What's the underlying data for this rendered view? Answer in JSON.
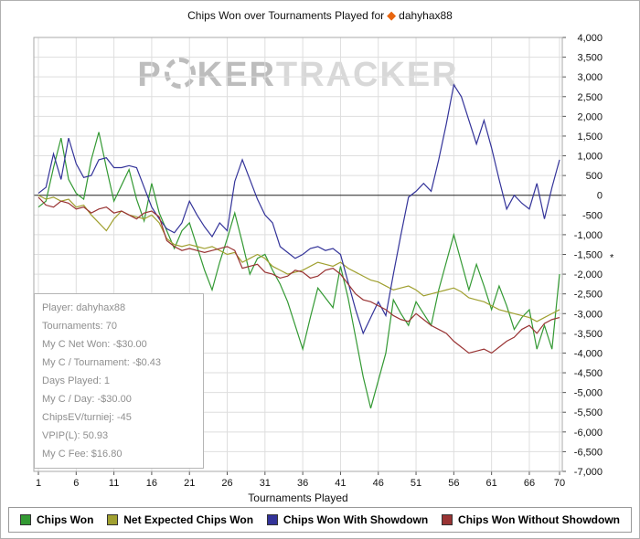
{
  "header": {
    "title_prefix": "Chips Won over Tournaments Played for",
    "player": "dahyhax88",
    "diamond_icon": "diamond-suit"
  },
  "watermark": {
    "part1": "P",
    "part2": "KER",
    "part3": "TRACKER"
  },
  "stats_box": {
    "lines": [
      {
        "label": "Player",
        "value": "dahyhax88"
      },
      {
        "label": "Tournaments",
        "value": "70"
      },
      {
        "label": "My C Net Won",
        "value": "-$30.00"
      },
      {
        "label": "My C / Tournament",
        "value": "-$0.43"
      },
      {
        "label": "Days Played",
        "value": "1"
      },
      {
        "label": "My C / Day",
        "value": "-$30.00"
      },
      {
        "label": "ChipsEV/turniej",
        "value": "-45"
      },
      {
        "label": "VPIP(L)",
        "value": "50.93"
      },
      {
        "label": "My C Fee",
        "value": "$16.80"
      }
    ]
  },
  "chart_data": {
    "type": "line",
    "title": "Chips Won over Tournaments Played for dahyhax88",
    "xlabel": "Tournaments Played",
    "ylabel": "",
    "xlim": [
      1,
      70
    ],
    "ylim": [
      -7000,
      4000
    ],
    "y_tick_step": 500,
    "x_ticks": [
      1,
      6,
      11,
      16,
      21,
      26,
      31,
      36,
      41,
      46,
      51,
      56,
      61,
      66,
      70
    ],
    "grid": true,
    "legend_position": "bottom",
    "y_axis_side": "right",
    "zero_line_color": "#222222",
    "grid_color": "#dedede",
    "marker": {
      "symbol": "*",
      "value": -1550
    },
    "series": [
      {
        "name": "Chips Won",
        "color": "#339933",
        "values": [
          -300,
          -150,
          700,
          1450,
          400,
          50,
          -100,
          900,
          1600,
          700,
          -150,
          250,
          650,
          -100,
          -650,
          300,
          -450,
          -900,
          -1350,
          -900,
          -700,
          -1300,
          -1900,
          -2400,
          -1700,
          -1100,
          -450,
          -1200,
          -2000,
          -1600,
          -1500,
          -1900,
          -2250,
          -2700,
          -3300,
          -3900,
          -3100,
          -2350,
          -2600,
          -2850,
          -1800,
          -2600,
          -3600,
          -4600,
          -5400,
          -4700,
          -4000,
          -2650,
          -3000,
          -3300,
          -2700,
          -3000,
          -3300,
          -2400,
          -1700,
          -1000,
          -1700,
          -2400,
          -1750,
          -2300,
          -2900,
          -2300,
          -2800,
          -3400,
          -3100,
          -2900,
          -3900,
          -3300,
          -3900,
          -2000
        ]
      },
      {
        "name": "Net Expected Chips Won",
        "color": "#a0a030",
        "values": [
          0,
          -100,
          -50,
          -150,
          -100,
          -300,
          -250,
          -500,
          -700,
          -900,
          -600,
          -400,
          -500,
          -550,
          -600,
          -500,
          -700,
          -1100,
          -1250,
          -1300,
          -1250,
          -1300,
          -1350,
          -1300,
          -1400,
          -1500,
          -1450,
          -1700,
          -1600,
          -1500,
          -1600,
          -1800,
          -1900,
          -2000,
          -1950,
          -1900,
          -1800,
          -1700,
          -1750,
          -1800,
          -1700,
          -1850,
          -1950,
          -2050,
          -2150,
          -2200,
          -2300,
          -2400,
          -2350,
          -2300,
          -2400,
          -2550,
          -2500,
          -2450,
          -2400,
          -2350,
          -2450,
          -2600,
          -2650,
          -2700,
          -2800,
          -2900,
          -2950,
          -3000,
          -3050,
          -3100,
          -3200,
          -3100,
          -3000,
          -2900
        ]
      },
      {
        "name": "Chips Won With Showdown",
        "color": "#333399",
        "values": [
          50,
          200,
          1050,
          400,
          1450,
          800,
          450,
          500,
          900,
          950,
          700,
          700,
          750,
          700,
          200,
          -300,
          -600,
          -850,
          -950,
          -700,
          -150,
          -500,
          -800,
          -1050,
          -700,
          -900,
          350,
          900,
          400,
          -100,
          -500,
          -700,
          -1300,
          -1450,
          -1600,
          -1500,
          -1350,
          -1300,
          -1400,
          -1350,
          -1500,
          -2200,
          -2900,
          -3500,
          -3100,
          -2700,
          -3050,
          -2000,
          -1000,
          -50,
          100,
          300,
          100,
          900,
          1800,
          2800,
          2500,
          1900,
          1300,
          1900,
          1200,
          400,
          -350,
          0,
          -200,
          -350,
          300,
          -600,
          200,
          900
        ]
      },
      {
        "name": "Chips Won Without Showdown",
        "color": "#993333",
        "values": [
          -50,
          -250,
          -300,
          -150,
          -200,
          -350,
          -300,
          -450,
          -350,
          -300,
          -450,
          -400,
          -500,
          -600,
          -450,
          -400,
          -550,
          -1150,
          -1300,
          -1400,
          -1350,
          -1400,
          -1450,
          -1400,
          -1350,
          -1300,
          -1400,
          -1850,
          -1800,
          -1750,
          -1950,
          -2000,
          -2100,
          -2050,
          -1900,
          -1950,
          -2100,
          -2050,
          -1900,
          -1850,
          -2000,
          -2250,
          -2500,
          -2650,
          -2700,
          -2800,
          -2900,
          -3050,
          -3150,
          -3200,
          -3000,
          -3150,
          -3300,
          -3400,
          -3500,
          -3700,
          -3850,
          -4000,
          -3950,
          -3900,
          -4000,
          -3850,
          -3700,
          -3600,
          -3400,
          -3300,
          -3500,
          -3250,
          -3150,
          -3100
        ]
      }
    ]
  }
}
